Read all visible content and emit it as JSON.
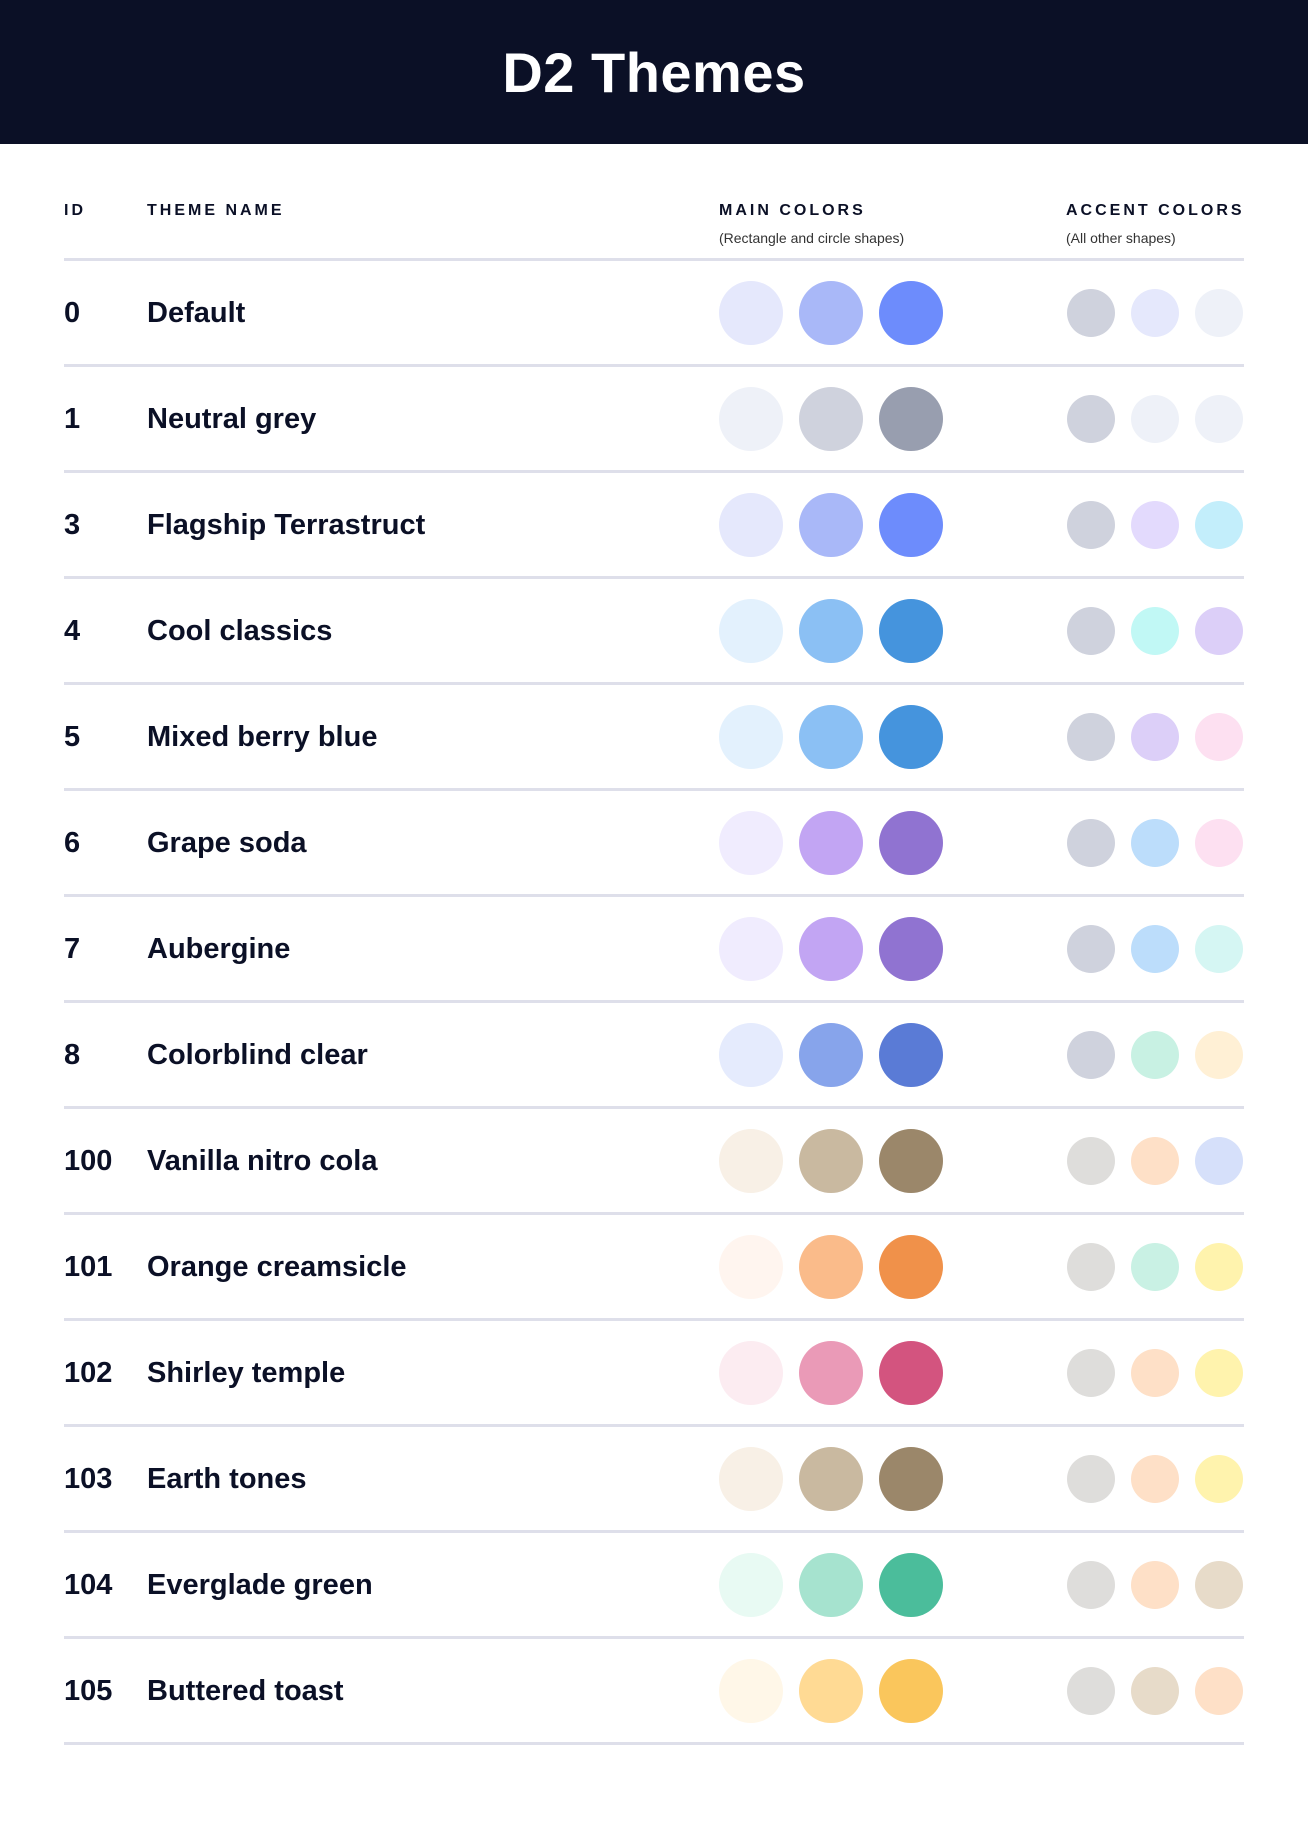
{
  "title": "D2 Themes",
  "columns": {
    "id": "ID",
    "name": "THEME NAME",
    "main": "MAIN COLORS",
    "main_sub": "(Rectangle and circle shapes)",
    "accent": "ACCENT COLORS",
    "accent_sub": "(All other shapes)"
  },
  "themes": [
    {
      "id": "0",
      "name": "Default",
      "main": [
        "#E5E8FC",
        "#A9B8F8",
        "#6D8CFC"
      ],
      "accent": [
        "#CFD2DD",
        "#E5E8FC",
        "#EEF1F8"
      ]
    },
    {
      "id": "1",
      "name": "Neutral grey",
      "main": [
        "#EEF1F8",
        "#CFD2DD",
        "#989EAF"
      ],
      "accent": [
        "#CFD2DD",
        "#EEF1F8",
        "#EEF1F8"
      ]
    },
    {
      "id": "3",
      "name": "Flagship Terrastruct",
      "main": [
        "#E5E8FC",
        "#A9B8F8",
        "#6D8CFC"
      ],
      "accent": [
        "#CFD2DD",
        "#E3DAFD",
        "#C3EEFB"
      ]
    },
    {
      "id": "4",
      "name": "Cool classics",
      "main": [
        "#E3F1FD",
        "#8BC0F4",
        "#4594DD"
      ],
      "accent": [
        "#CFD2DD",
        "#C1F8F5",
        "#DCCFF8"
      ]
    },
    {
      "id": "5",
      "name": "Mixed berry blue",
      "main": [
        "#E3F1FD",
        "#8BC0F4",
        "#4594DD"
      ],
      "accent": [
        "#CFD2DD",
        "#DCCFF8",
        "#FDE0F1"
      ]
    },
    {
      "id": "6",
      "name": "Grape soda",
      "main": [
        "#F0ECFE",
        "#C2A5F3",
        "#9073D1"
      ],
      "accent": [
        "#CFD2DD",
        "#BCDDFB",
        "#FDE0F1"
      ]
    },
    {
      "id": "7",
      "name": "Aubergine",
      "main": [
        "#F0ECFE",
        "#C2A5F3",
        "#9073D1"
      ],
      "accent": [
        "#CFD2DD",
        "#BCDDFB",
        "#D5F6F3"
      ]
    },
    {
      "id": "8",
      "name": "Colorblind clear",
      "main": [
        "#E5EBFD",
        "#87A4EB",
        "#5A7BD6"
      ],
      "accent": [
        "#CFD2DD",
        "#C8F1E3",
        "#FFF0D5"
      ]
    },
    {
      "id": "100",
      "name": "Vanilla nitro cola",
      "main": [
        "#F8F0E6",
        "#C9B9A0",
        "#9B876A"
      ],
      "accent": [
        "#DEDDDB",
        "#FEE0C7",
        "#D6E0FA"
      ]
    },
    {
      "id": "101",
      "name": "Orange creamsicle",
      "main": [
        "#FFF5EF",
        "#FABB8A",
        "#F0914A"
      ],
      "accent": [
        "#DEDDDB",
        "#C9F1E4",
        "#FFF3AD"
      ]
    },
    {
      "id": "102",
      "name": "Shirley temple",
      "main": [
        "#FCECF1",
        "#EA9AB7",
        "#D3547F"
      ],
      "accent": [
        "#DEDDDB",
        "#FEE0C7",
        "#FFF3AD"
      ]
    },
    {
      "id": "103",
      "name": "Earth tones",
      "main": [
        "#F8F0E6",
        "#C9B9A0",
        "#9B876A"
      ],
      "accent": [
        "#DEDDDB",
        "#FEE0C7",
        "#FFF3AD"
      ]
    },
    {
      "id": "104",
      "name": "Everglade green",
      "main": [
        "#E8FAF3",
        "#A6E3CF",
        "#4BBD9B"
      ],
      "accent": [
        "#DEDDDB",
        "#FEE0C7",
        "#E7DBC9"
      ]
    },
    {
      "id": "105",
      "name": "Buttered toast",
      "main": [
        "#FFF7E8",
        "#FFDA94",
        "#FAC65C"
      ],
      "accent": [
        "#DEDDDB",
        "#E7DBC9",
        "#FEE0C7"
      ]
    }
  ]
}
